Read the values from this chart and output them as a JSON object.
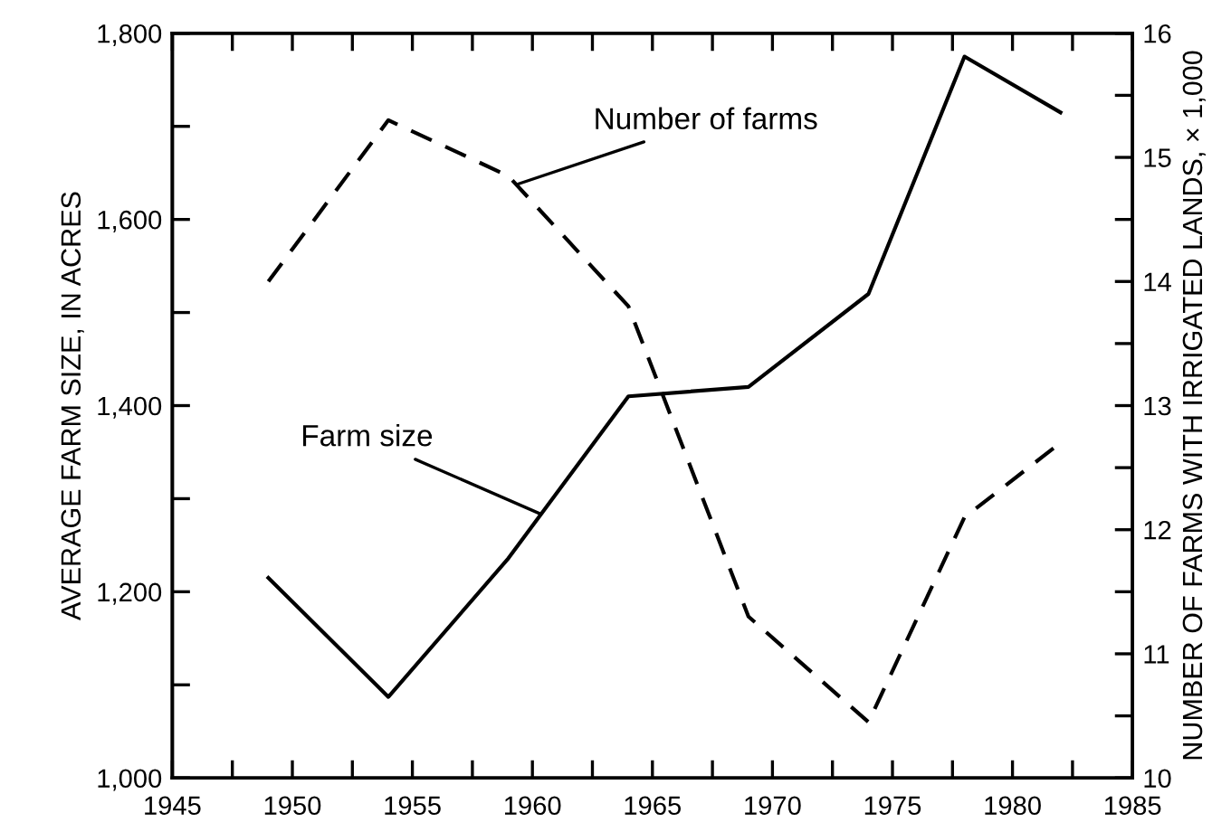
{
  "chart_data": {
    "type": "line",
    "xlabel": null,
    "ylabel": "AVERAGE FARM SIZE, IN ACRES",
    "y2label": "NUMBER OF FARMS WITH IRRIGATED LANDS, × 1,000",
    "series": [
      {
        "color": "#000000",
        "line_style": "solid",
        "x": [
          1949,
          1954,
          1959,
          1964,
          1969,
          1974,
          1978,
          1982
        ],
        "values": [
          1215,
          1087,
          1236,
          1410,
          1420,
          1520,
          1775,
          1715
        ]
      },
      {
        "color": "#000000",
        "line_style": "dashed",
        "axis": "y2",
        "x": [
          1949,
          1954,
          1959,
          1964,
          1969,
          1974,
          1978,
          1982
        ],
        "values": [
          14.0,
          15.3,
          14.85,
          13.8,
          11.3,
          10.45,
          12.1,
          12.7
        ]
      }
    ],
    "xlim": [
      1945,
      1985
    ],
    "xticks": [
      1945,
      {
        "value": 1947.5,
        "label": null
      },
      1950,
      {
        "value": 1952.5,
        "label": null
      },
      1955,
      {
        "value": 1957.5,
        "label": null
      },
      1960,
      {
        "value": 1962.5,
        "label": null
      },
      1965,
      {
        "value": 1967.5,
        "label": null
      },
      1970,
      {
        "value": 1972.5,
        "label": null
      },
      1975,
      {
        "value": 1977.5,
        "label": null
      },
      1980,
      {
        "value": 1982.5,
        "label": null
      },
      1985
    ],
    "ylim": [
      1000,
      1800
    ],
    "yticks": [
      {
        "value": 1000,
        "label": "1,000"
      },
      {
        "value": 1100,
        "label": null
      },
      {
        "value": 1200,
        "label": "1,200"
      },
      {
        "value": 1300,
        "label": null
      },
      {
        "value": 1400,
        "label": "1,400"
      },
      {
        "value": 1500,
        "label": null
      },
      {
        "value": 1600,
        "label": "1,600"
      },
      {
        "value": 1700,
        "label": null
      },
      {
        "value": 1800,
        "label": "1,800"
      }
    ],
    "y2lim": [
      10,
      16
    ],
    "y2ticks": [
      10,
      {
        "value": 10.5,
        "label": null
      },
      11,
      {
        "value": 11.5,
        "label": null
      },
      12,
      {
        "value": 12.5,
        "label": null
      },
      13,
      {
        "value": 13.5,
        "label": null
      },
      14,
      {
        "value": 14.5,
        "label": null
      },
      15,
      {
        "value": 15.5,
        "label": null
      },
      16
    ],
    "grid": false,
    "legend": false,
    "annotations": [
      {
        "text": "Number of farms",
        "x": 1959.4,
        "y": 1638
      },
      {
        "text": "Farm size",
        "x": 1960.3,
        "y": 1284
      }
    ]
  }
}
